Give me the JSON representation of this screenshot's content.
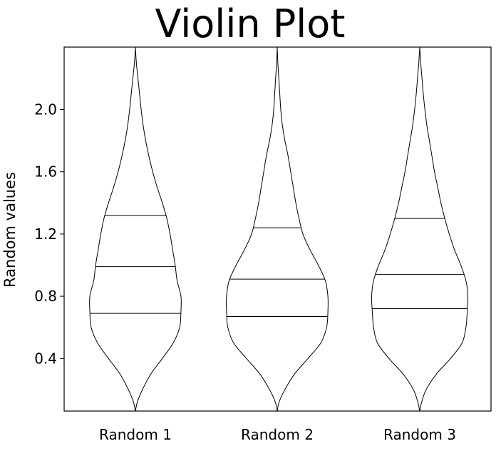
{
  "chart_data": {
    "type": "violin",
    "title": "Violin Plot",
    "xlabel": "",
    "ylabel": "Random values",
    "ylim": [
      0.06,
      2.4
    ],
    "yticks": [
      {
        "value": 0.4,
        "label": "0.4"
      },
      {
        "value": 0.8,
        "label": "0.8"
      },
      {
        "value": 1.2,
        "label": "1.2"
      },
      {
        "value": 1.6,
        "label": "1.6"
      },
      {
        "value": 2.0,
        "label": "2.0"
      }
    ],
    "categories": [
      "Random 1",
      "Random 2",
      "Random 3"
    ],
    "grid": false,
    "violins": [
      {
        "category": "Random 1",
        "y_min": 0.06,
        "y_max": 2.4,
        "quartiles": [
          0.69,
          0.99,
          1.32
        ],
        "profile": [
          [
            0.06,
            0.0
          ],
          [
            0.12,
            0.03
          ],
          [
            0.2,
            0.11
          ],
          [
            0.3,
            0.24
          ],
          [
            0.4,
            0.42
          ],
          [
            0.5,
            0.59
          ],
          [
            0.6,
            0.69
          ],
          [
            0.7,
            0.71
          ],
          [
            0.8,
            0.71
          ],
          [
            0.9,
            0.65
          ],
          [
            1.0,
            0.62
          ],
          [
            1.1,
            0.58
          ],
          [
            1.2,
            0.54
          ],
          [
            1.3,
            0.49
          ],
          [
            1.4,
            0.42
          ],
          [
            1.5,
            0.34
          ],
          [
            1.6,
            0.27
          ],
          [
            1.7,
            0.21
          ],
          [
            1.8,
            0.16
          ],
          [
            1.9,
            0.12
          ],
          [
            2.0,
            0.09
          ],
          [
            2.1,
            0.065
          ],
          [
            2.2,
            0.04
          ],
          [
            2.3,
            0.015
          ],
          [
            2.4,
            0.0
          ]
        ]
      },
      {
        "category": "Random 2",
        "y_min": 0.06,
        "y_max": 2.4,
        "quartiles": [
          0.67,
          0.91,
          1.24
        ],
        "profile": [
          [
            0.06,
            0.0
          ],
          [
            0.12,
            0.03
          ],
          [
            0.2,
            0.12
          ],
          [
            0.3,
            0.27
          ],
          [
            0.4,
            0.48
          ],
          [
            0.5,
            0.68
          ],
          [
            0.6,
            0.77
          ],
          [
            0.7,
            0.79
          ],
          [
            0.8,
            0.79
          ],
          [
            0.9,
            0.75
          ],
          [
            1.0,
            0.64
          ],
          [
            1.1,
            0.51
          ],
          [
            1.2,
            0.4
          ],
          [
            1.3,
            0.34
          ],
          [
            1.4,
            0.29
          ],
          [
            1.5,
            0.25
          ],
          [
            1.6,
            0.21
          ],
          [
            1.7,
            0.17
          ],
          [
            1.8,
            0.12
          ],
          [
            1.9,
            0.08
          ],
          [
            2.0,
            0.055
          ],
          [
            2.1,
            0.04
          ],
          [
            2.2,
            0.025
          ],
          [
            2.3,
            0.01
          ],
          [
            2.4,
            0.0
          ]
        ]
      },
      {
        "category": "Random 3",
        "y_min": 0.06,
        "y_max": 2.4,
        "quartiles": [
          0.72,
          0.94,
          1.3
        ],
        "profile": [
          [
            0.06,
            0.0
          ],
          [
            0.12,
            0.03
          ],
          [
            0.2,
            0.1
          ],
          [
            0.3,
            0.26
          ],
          [
            0.4,
            0.48
          ],
          [
            0.5,
            0.66
          ],
          [
            0.6,
            0.72
          ],
          [
            0.7,
            0.74
          ],
          [
            0.8,
            0.75
          ],
          [
            0.9,
            0.72
          ],
          [
            1.0,
            0.64
          ],
          [
            1.1,
            0.54
          ],
          [
            1.2,
            0.46
          ],
          [
            1.3,
            0.39
          ],
          [
            1.4,
            0.33
          ],
          [
            1.5,
            0.28
          ],
          [
            1.6,
            0.23
          ],
          [
            1.7,
            0.19
          ],
          [
            1.8,
            0.15
          ],
          [
            1.9,
            0.11
          ],
          [
            2.0,
            0.08
          ],
          [
            2.1,
            0.055
          ],
          [
            2.2,
            0.035
          ],
          [
            2.3,
            0.015
          ],
          [
            2.4,
            0.0
          ]
        ]
      }
    ]
  }
}
